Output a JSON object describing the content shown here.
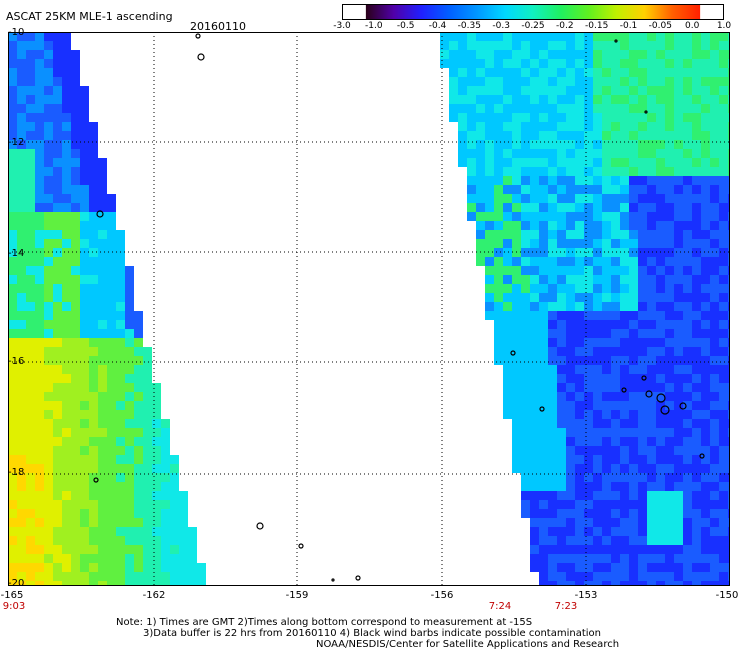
{
  "header": {
    "title": "ASCAT 25KM MLE-1 ascending",
    "date": "20160110"
  },
  "colorbar": {
    "tick_labels": [
      "-3.0",
      "-1.0",
      "-0.5",
      "-0.4",
      "-0.35",
      "-0.3",
      "-0.25",
      "-0.2",
      "-0.15",
      "-0.1",
      "-0.05",
      "0.0",
      "1.0"
    ],
    "colors": [
      "#2a0018",
      "#5000a8",
      "#2020ff",
      "#0060ff",
      "#0098ff",
      "#00d8ff",
      "#10f0c0",
      "#20f060",
      "#60f020",
      "#c0f000",
      "#ffd000",
      "#ff6000",
      "#ff2000"
    ]
  },
  "axes": {
    "lat_labels": [
      "-10",
      "-12",
      "-14",
      "-16",
      "-18",
      "-20"
    ],
    "lon_labels": [
      "-165",
      "-162",
      "-159",
      "-156",
      "-153",
      "-150"
    ],
    "time_labels": [
      "9:03",
      "7:24",
      "7:23"
    ]
  },
  "notes": {
    "line1": "Note: 1) Times are GMT 2)Times along bottom correspond to measurement at -15S",
    "line2": "3)Data buffer is 22 hrs from 20160110 4) Black wind barbs indicate possible contamination",
    "line3": "NOAA/NESDIS/Center for Satellite Applications and Research"
  }
}
